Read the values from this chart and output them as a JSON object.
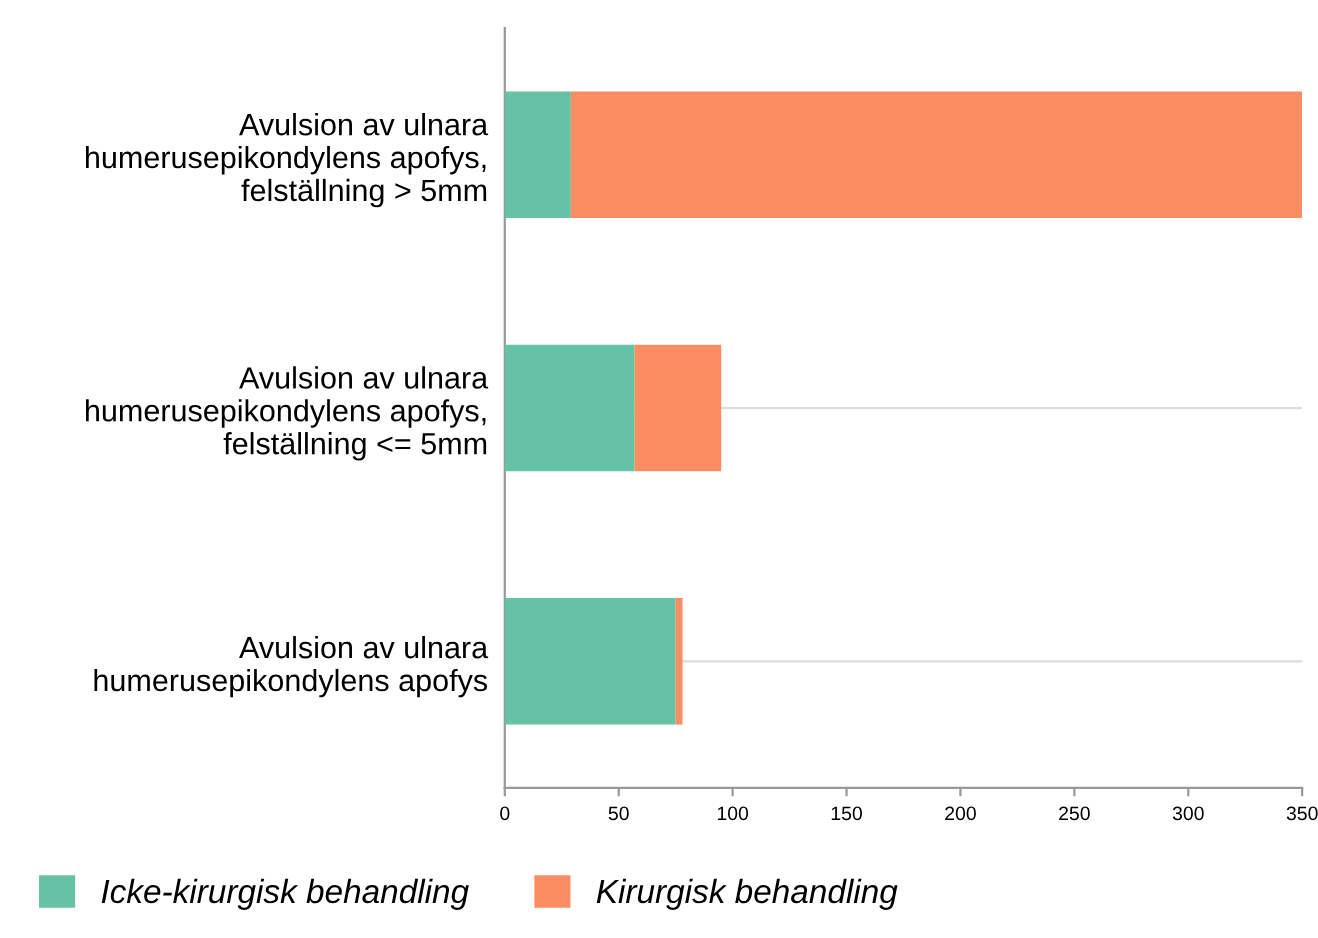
{
  "chart_data": {
    "type": "bar",
    "orientation": "horizontal",
    "stacked": true,
    "categories": [
      "Avulsion av ulnara\nhumerusepikondylens apofys,\nfelställning > 5mm",
      "Avulsion av ulnara\nhumerusepikondylens apofys,\nfelställning <= 5mm",
      "Avulsion av ulnara\nhumerusepikondylens apofys"
    ],
    "series": [
      {
        "name": "Icke-kirurgisk behandling",
        "color": "#66c2a5",
        "values": [
          29,
          57,
          75
        ]
      },
      {
        "name": "Kirurgisk behandling",
        "color": "#fc8d62",
        "values": [
          321,
          38,
          3
        ]
      }
    ],
    "xlim": [
      0,
      350
    ],
    "xticks": [
      0,
      50,
      100,
      150,
      200,
      250,
      300,
      350
    ],
    "grid": "y",
    "legend": "bottom"
  }
}
